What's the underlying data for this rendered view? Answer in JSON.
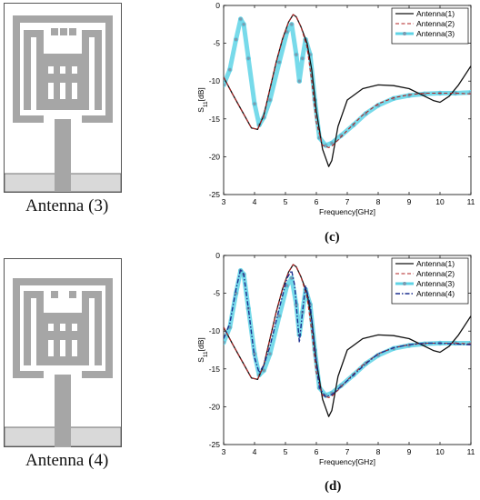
{
  "figure": {
    "left_captions": {
      "antenna_3": "Antenna (3)",
      "antenna_4": "Antenna (4)"
    },
    "panel_labels": {
      "c": "(c)",
      "d": "(d)"
    }
  },
  "colors": {
    "antenna_metal": "#a6a6a6",
    "ground_plane": "#d9d9d9",
    "antenna_1": "#111111",
    "antenna_2": "#b22222",
    "antenna_3": "#5fd3e6",
    "antenna_4": "#1c2f8f"
  },
  "chart_data": [
    {
      "type": "line",
      "panel": "(c)",
      "title": "",
      "xlabel": "Frequency[GHz]",
      "ylabel_main": "S",
      "ylabel_sub": "11",
      "ylabel_unit": "[dB]",
      "xlim": [
        3,
        11
      ],
      "ylim": [
        -25,
        0
      ],
      "xticks": [
        3,
        4,
        5,
        6,
        7,
        8,
        9,
        10,
        11
      ],
      "yticks": [
        0,
        -5,
        -10,
        -15,
        -20,
        -25
      ],
      "legend_position": "top-right",
      "series": [
        {
          "name": "Antenna(1)",
          "style": "solid",
          "x": [
            3,
            3.3,
            3.6,
            3.9,
            4.1,
            4.3,
            4.5,
            4.7,
            4.9,
            5.1,
            5.25,
            5.35,
            5.5,
            5.7,
            5.85,
            6.0,
            6.2,
            6.4,
            6.5,
            6.7,
            7.0,
            7.5,
            8.0,
            8.5,
            9.0,
            9.5,
            9.8,
            10.0,
            10.3,
            10.6,
            11
          ],
          "y": [
            -9.5,
            -11.8,
            -14.0,
            -16.2,
            -16.4,
            -14.5,
            -11.0,
            -7.5,
            -4.5,
            -2.2,
            -1.2,
            -1.5,
            -2.8,
            -5.0,
            -8.5,
            -14.0,
            -19.0,
            -21.3,
            -20.5,
            -16.0,
            -12.5,
            -11.0,
            -10.5,
            -10.6,
            -11.0,
            -12.0,
            -12.6,
            -12.8,
            -12.0,
            -10.5,
            -8.0
          ]
        },
        {
          "name": "Antenna(2)",
          "style": "dashed",
          "x": [
            3,
            3.3,
            3.6,
            3.9,
            4.1,
            4.3,
            4.5,
            4.7,
            4.9,
            5.1,
            5.25,
            5.35,
            5.5,
            5.7,
            5.85,
            6.0,
            6.2,
            6.4,
            6.5,
            6.7,
            7.0,
            7.5,
            8.0,
            8.5,
            9.0,
            9.5,
            10.0,
            10.5,
            11
          ],
          "y": [
            -9.5,
            -11.8,
            -14.0,
            -16.2,
            -16.4,
            -14.5,
            -11.0,
            -7.5,
            -4.5,
            -2.2,
            -1.2,
            -1.5,
            -2.8,
            -5.5,
            -10.0,
            -15.5,
            -18.5,
            -18.8,
            -18.6,
            -17.8,
            -16.5,
            -14.5,
            -13.0,
            -12.2,
            -11.8,
            -11.6,
            -11.6,
            -11.6,
            -11.7
          ]
        },
        {
          "name": "Antenna(3)",
          "style": "solid-star",
          "x": [
            3,
            3.2,
            3.4,
            3.55,
            3.65,
            3.8,
            4.0,
            4.15,
            4.3,
            4.5,
            4.8,
            5.05,
            5.2,
            5.35,
            5.45,
            5.55,
            5.65,
            5.8,
            5.95,
            6.1,
            6.3,
            6.5,
            6.8,
            7.2,
            7.6,
            8.0,
            8.5,
            9.0,
            9.5,
            10.0,
            10.5,
            11
          ],
          "y": [
            -10.5,
            -8.5,
            -4.5,
            -1.8,
            -2.5,
            -7.0,
            -13.0,
            -15.8,
            -14.8,
            -12.5,
            -7.5,
            -3.5,
            -2.5,
            -6.5,
            -10.0,
            -7.0,
            -4.5,
            -6.5,
            -12.5,
            -17.5,
            -18.5,
            -18.2,
            -17.2,
            -15.8,
            -14.3,
            -13.2,
            -12.3,
            -11.9,
            -11.7,
            -11.6,
            -11.6,
            -11.5
          ]
        }
      ]
    },
    {
      "type": "line",
      "panel": "(d)",
      "title": "",
      "xlabel": "Frequency[GHz]",
      "ylabel_main": "S",
      "ylabel_sub": "11",
      "ylabel_unit": "[dB]",
      "xlim": [
        3,
        11
      ],
      "ylim": [
        -25,
        0
      ],
      "xticks": [
        3,
        4,
        5,
        6,
        7,
        8,
        9,
        10,
        11
      ],
      "yticks": [
        0,
        -5,
        -10,
        -15,
        -20,
        -25
      ],
      "legend_position": "top-right",
      "series": [
        {
          "name": "Antenna(1)",
          "style": "solid",
          "x": [
            3,
            3.3,
            3.6,
            3.9,
            4.1,
            4.3,
            4.5,
            4.7,
            4.9,
            5.1,
            5.25,
            5.35,
            5.5,
            5.7,
            5.85,
            6.0,
            6.2,
            6.4,
            6.5,
            6.7,
            7.0,
            7.5,
            8.0,
            8.5,
            9.0,
            9.5,
            9.8,
            10.0,
            10.3,
            10.6,
            11
          ],
          "y": [
            -9.5,
            -11.8,
            -14.0,
            -16.2,
            -16.4,
            -14.5,
            -11.0,
            -7.5,
            -4.5,
            -2.2,
            -1.2,
            -1.5,
            -2.8,
            -5.0,
            -8.5,
            -14.0,
            -19.0,
            -21.3,
            -20.5,
            -16.0,
            -12.5,
            -11.0,
            -10.5,
            -10.6,
            -11.0,
            -12.0,
            -12.6,
            -12.8,
            -12.0,
            -10.5,
            -8.0
          ]
        },
        {
          "name": "Antenna(2)",
          "style": "dashed",
          "x": [
            3,
            3.3,
            3.6,
            3.9,
            4.1,
            4.3,
            4.5,
            4.7,
            4.9,
            5.1,
            5.25,
            5.35,
            5.5,
            5.7,
            5.85,
            6.0,
            6.2,
            6.4,
            6.5,
            6.7,
            7.0,
            7.5,
            8.0,
            8.5,
            9.0,
            9.5,
            10.0,
            10.5,
            11
          ],
          "y": [
            -9.5,
            -11.8,
            -14.0,
            -16.2,
            -16.4,
            -14.5,
            -11.0,
            -7.5,
            -4.5,
            -2.2,
            -1.2,
            -1.5,
            -2.8,
            -5.5,
            -10.0,
            -15.5,
            -18.5,
            -18.8,
            -18.6,
            -17.8,
            -16.5,
            -14.5,
            -13.0,
            -12.2,
            -11.8,
            -11.6,
            -11.6,
            -11.6,
            -11.7
          ]
        },
        {
          "name": "Antenna(3)",
          "style": "solid-star",
          "x": [
            3,
            3.2,
            3.4,
            3.55,
            3.65,
            3.8,
            4.0,
            4.15,
            4.3,
            4.5,
            4.8,
            5.05,
            5.2,
            5.35,
            5.45,
            5.55,
            5.65,
            5.8,
            5.95,
            6.1,
            6.3,
            6.5,
            6.8,
            7.2,
            7.6,
            8.0,
            8.5,
            9.0,
            9.5,
            10.0,
            10.5,
            11
          ],
          "y": [
            -11.5,
            -9.5,
            -5.0,
            -2.0,
            -2.5,
            -7.0,
            -13.0,
            -15.8,
            -15.2,
            -13.0,
            -8.0,
            -4.0,
            -3.0,
            -6.5,
            -10.5,
            -7.5,
            -4.5,
            -6.5,
            -12.5,
            -17.5,
            -18.5,
            -18.2,
            -17.2,
            -15.8,
            -14.3,
            -13.2,
            -12.3,
            -11.9,
            -11.7,
            -11.6,
            -11.6,
            -11.6
          ]
        },
        {
          "name": "Antenna(4)",
          "style": "dashdot",
          "x": [
            3,
            3.2,
            3.4,
            3.55,
            3.65,
            3.8,
            4.0,
            4.15,
            4.3,
            4.5,
            4.8,
            5.05,
            5.2,
            5.3,
            5.45,
            5.55,
            5.65,
            5.8,
            5.95,
            6.1,
            6.3,
            6.5,
            6.8,
            7.2,
            7.6,
            8.0,
            8.5,
            9.0,
            9.5,
            10.0,
            10.5,
            11
          ],
          "y": [
            -11.0,
            -9.0,
            -4.5,
            -1.8,
            -2.5,
            -7.0,
            -13.5,
            -15.5,
            -14.5,
            -12.0,
            -7.0,
            -3.0,
            -2.0,
            -4.0,
            -11.5,
            -7.5,
            -4.0,
            -6.5,
            -12.5,
            -17.5,
            -18.7,
            -18.4,
            -17.3,
            -15.8,
            -14.3,
            -13.0,
            -12.2,
            -11.8,
            -11.6,
            -11.6,
            -11.7,
            -11.8
          ]
        }
      ]
    }
  ]
}
